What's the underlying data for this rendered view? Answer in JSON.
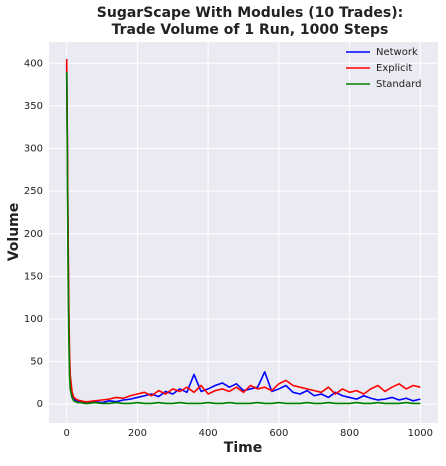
{
  "chart_data": {
    "type": "line",
    "title": [
      "SugarScape With Modules (10 Trades):",
      "Trade Volume of 1 Run, 1000 Steps"
    ],
    "xlabel": "Time",
    "ylabel": "Volume",
    "x": [
      0,
      2,
      4,
      6,
      8,
      10,
      15,
      20,
      30,
      40,
      50,
      60,
      80,
      100,
      120,
      140,
      160,
      180,
      200,
      220,
      240,
      260,
      280,
      300,
      320,
      340,
      360,
      380,
      400,
      420,
      440,
      460,
      480,
      500,
      520,
      540,
      560,
      580,
      600,
      620,
      640,
      660,
      680,
      700,
      720,
      740,
      760,
      780,
      800,
      820,
      840,
      860,
      880,
      900,
      920,
      940,
      960,
      980,
      1000
    ],
    "series": [
      {
        "name": "Network",
        "color": "#0000ff",
        "values": [
          400,
          300,
          180,
          100,
          50,
          30,
          12,
          6,
          4,
          3,
          2,
          2,
          3,
          2,
          4,
          3,
          5,
          6,
          8,
          10,
          12,
          9,
          15,
          12,
          18,
          14,
          35,
          15,
          18,
          22,
          25,
          20,
          24,
          16,
          18,
          20,
          38,
          15,
          18,
          22,
          14,
          12,
          16,
          10,
          12,
          8,
          14,
          10,
          8,
          6,
          10,
          7,
          5,
          6,
          8,
          5,
          7,
          4,
          6
        ]
      },
      {
        "name": "Explicit",
        "color": "#ff0000",
        "values": [
          405,
          310,
          200,
          120,
          60,
          35,
          15,
          8,
          5,
          4,
          3,
          3,
          4,
          5,
          6,
          8,
          7,
          10,
          12,
          14,
          10,
          16,
          12,
          18,
          15,
          20,
          14,
          22,
          12,
          16,
          18,
          15,
          20,
          14,
          22,
          18,
          20,
          16,
          24,
          28,
          22,
          20,
          18,
          16,
          14,
          20,
          12,
          18,
          14,
          16,
          12,
          18,
          22,
          15,
          20,
          24,
          18,
          22,
          20
        ]
      },
      {
        "name": "Standard",
        "color": "#008000",
        "values": [
          390,
          280,
          150,
          80,
          35,
          18,
          8,
          4,
          2,
          2,
          1,
          1,
          2,
          1,
          1,
          2,
          1,
          1,
          2,
          1,
          1,
          2,
          1,
          1,
          2,
          1,
          1,
          1,
          2,
          1,
          1,
          2,
          1,
          1,
          1,
          2,
          1,
          1,
          2,
          1,
          1,
          1,
          2,
          1,
          1,
          2,
          1,
          1,
          1,
          2,
          1,
          1,
          2,
          1,
          1,
          1,
          2,
          1,
          1
        ]
      }
    ],
    "xlim": [
      -50,
      1050
    ],
    "ylim": [
      -22,
      425
    ],
    "xticks": [
      0,
      200,
      400,
      600,
      800,
      1000
    ],
    "yticks": [
      0,
      50,
      100,
      150,
      200,
      250,
      300,
      350,
      400
    ],
    "grid": true,
    "legend": "upper right"
  }
}
